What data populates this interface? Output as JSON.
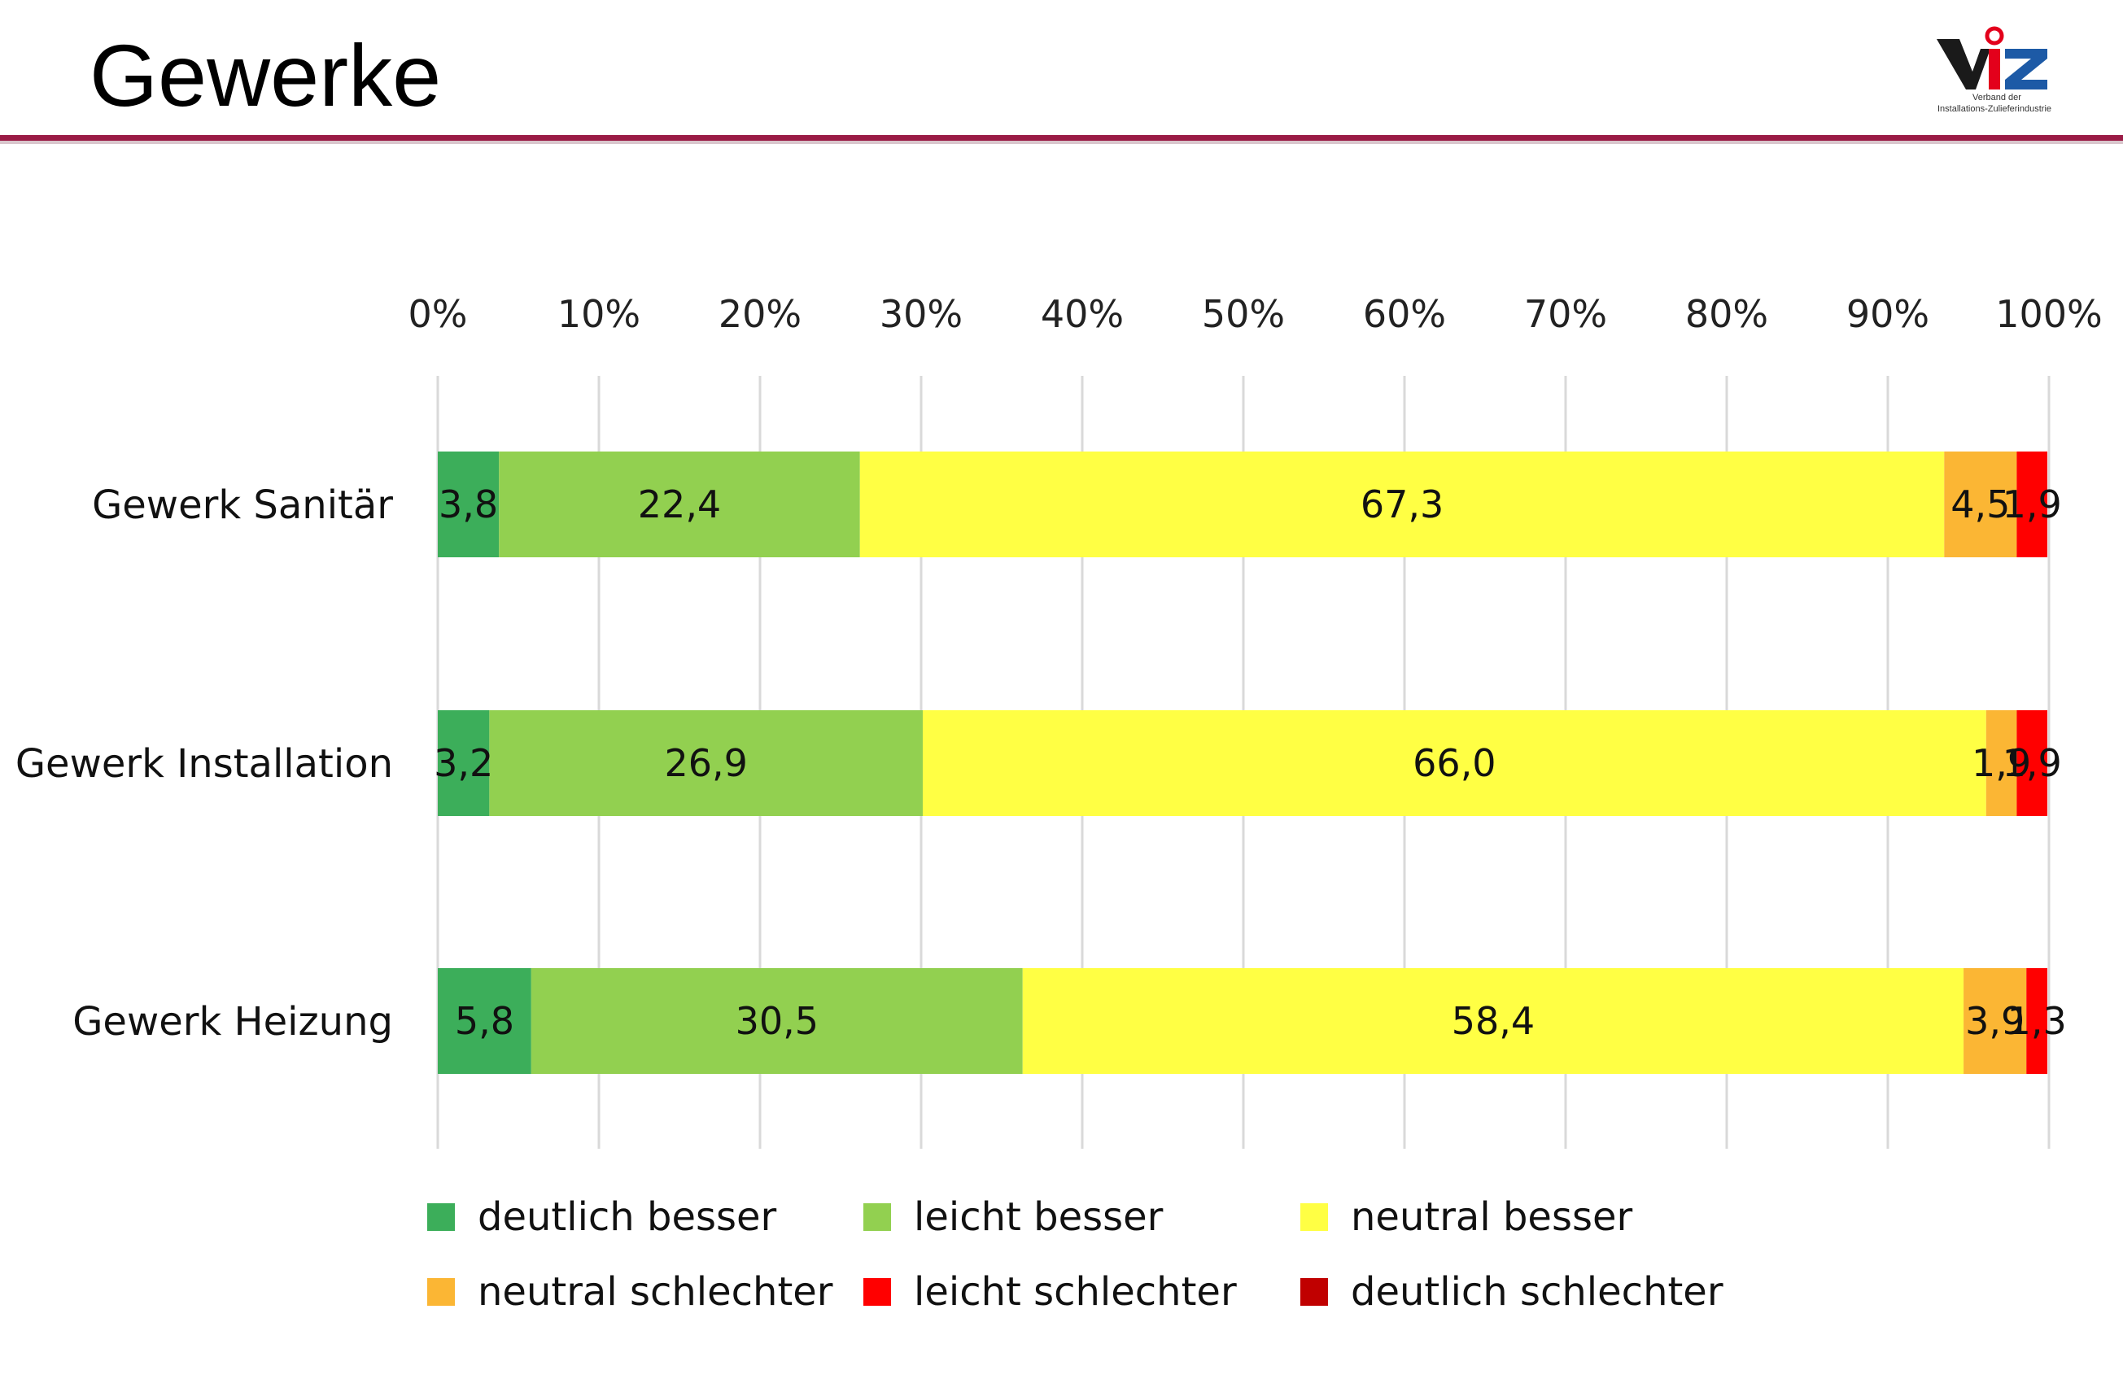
{
  "slide": {
    "title": "Gewerke"
  },
  "logo": {
    "text": "ViZ",
    "caption_line1": "Verband der",
    "caption_line2": "Installations-Zulieferindustrie",
    "colors": {
      "dark": "#1a1a1a",
      "red": "#e3001b",
      "blue": "#1d5aa6"
    }
  },
  "chart_data": {
    "type": "bar",
    "orientation": "horizontal",
    "stacked": true,
    "percent_stacked": true,
    "title": "",
    "xlabel": "",
    "ylabel": "",
    "xlim": [
      0,
      100
    ],
    "x_ticks": [
      "0%",
      "10%",
      "20%",
      "30%",
      "40%",
      "50%",
      "60%",
      "70%",
      "80%",
      "90%",
      "100%"
    ],
    "grid": "vertical",
    "legend_position": "bottom",
    "categories": [
      "Gewerk Sanitär",
      "Gewerk Installation",
      "Gewerk Heizung"
    ],
    "series": [
      {
        "name": "deutlich besser",
        "color": "#3cae5a",
        "values": [
          3.8,
          3.2,
          5.8
        ],
        "labels": [
          "3,8",
          "3,2",
          "5,8"
        ]
      },
      {
        "name": "leicht besser",
        "color": "#92d050",
        "values": [
          22.4,
          26.9,
          30.5
        ],
        "labels": [
          "22,4",
          "26,9",
          "30,5"
        ]
      },
      {
        "name": "neutral besser",
        "color": "#ffff44",
        "values": [
          67.3,
          66.0,
          58.4
        ],
        "labels": [
          "67,3",
          "66,0",
          "58,4"
        ]
      },
      {
        "name": "neutral schlechter",
        "color": "#fbb634",
        "values": [
          4.5,
          1.9,
          3.9
        ],
        "labels": [
          "4,5",
          "1,9",
          "3,9"
        ]
      },
      {
        "name": "leicht schlechter",
        "color": "#ff0000",
        "values": [
          1.9,
          1.9,
          1.3
        ],
        "labels": [
          "1,9",
          "1,9",
          "1,3"
        ]
      },
      {
        "name": "deutlich schlechter",
        "color": "#c00000",
        "values": [
          0,
          0,
          0
        ],
        "labels": [
          "",
          "",
          ""
        ]
      }
    ]
  }
}
